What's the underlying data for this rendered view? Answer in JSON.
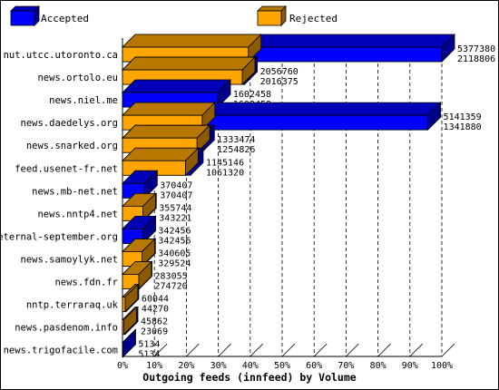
{
  "chart_data": {
    "type": "bar",
    "orientation": "horizontal",
    "stacked": false,
    "title": "Outgoing feeds (innfeed) by Volume",
    "xlim": [
      0,
      100
    ],
    "x_ticks": [
      "0%",
      "10%",
      "20%",
      "30%",
      "40%",
      "50%",
      "60%",
      "70%",
      "80%",
      "90%",
      "100%"
    ],
    "grid": "vertical dashed",
    "legend_position": "top",
    "categories": [
      "nut.utcc.utoronto.ca",
      "news.ortolo.eu",
      "news.niel.me",
      "news.daedelys.org",
      "news.snarked.org",
      "feed.usenet-fr.net",
      "news.mb-net.net",
      "news.nntp4.net",
      "eternal-september.org",
      "news.samoylyk.net",
      "news.fdn.fr",
      "nntp.terraraq.uk",
      "news.pasdenom.info",
      "news.trigofacile.com"
    ],
    "series": [
      {
        "name": "Accepted",
        "color": "#0000ff",
        "values": [
          5377380,
          2056760,
          1602458,
          5141359,
          1333474,
          1145146,
          370407,
          355744,
          342456,
          340605,
          283055,
          60044,
          45862,
          5134
        ]
      },
      {
        "name": "Rejected",
        "color": "#ffa500",
        "values": [
          2118806,
          2016375,
          1602458,
          1341880,
          1254826,
          1061320,
          370407,
          343221,
          342456,
          329524,
          274720,
          44270,
          23069,
          5134
        ]
      }
    ]
  }
}
